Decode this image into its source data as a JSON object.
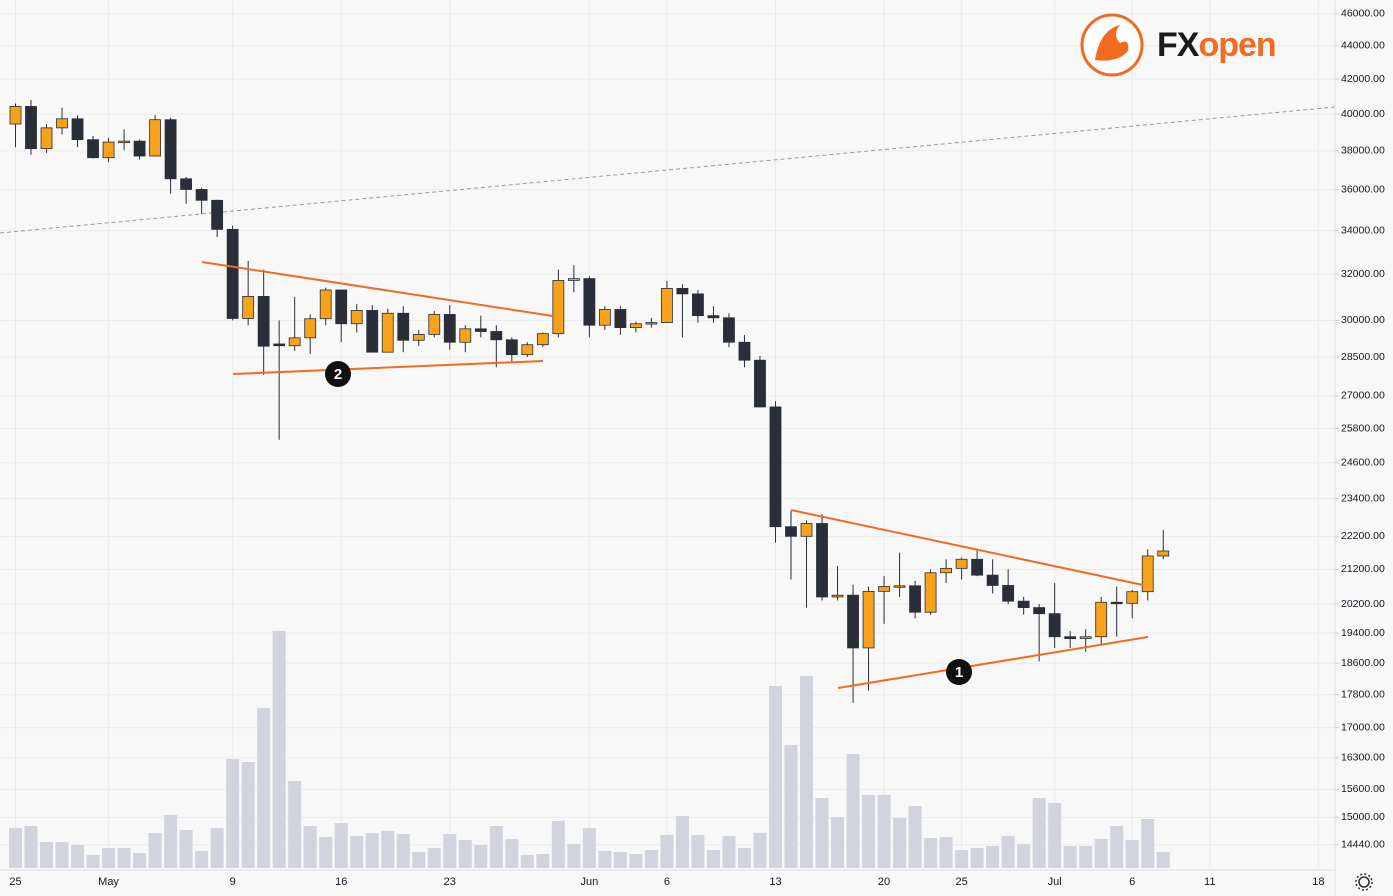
{
  "chart_data": {
    "type": "candlestick",
    "categories": [
      "25",
      null,
      null,
      null,
      null,
      null,
      "May",
      null,
      null,
      null,
      null,
      null,
      null,
      null,
      "9",
      null,
      null,
      null,
      null,
      null,
      null,
      "16",
      null,
      null,
      null,
      null,
      null,
      null,
      "23",
      null,
      null,
      null,
      null,
      null,
      null,
      null,
      null,
      "Jun",
      null,
      null,
      null,
      null,
      "6",
      null,
      null,
      null,
      null,
      null,
      null,
      "13",
      null,
      null,
      null,
      null,
      null,
      null,
      "20",
      null,
      null,
      null,
      null,
      "25",
      null,
      null,
      null,
      null,
      null,
      "Jul",
      null,
      null,
      null,
      null,
      "6",
      null,
      null,
      null,
      null,
      "11",
      null,
      null,
      null,
      null,
      null,
      null,
      "18"
    ],
    "open": [
      39450,
      40430,
      38120,
      39240,
      39740,
      38600,
      37640,
      38470,
      38520,
      37730,
      39690,
      36550,
      36010,
      35470,
      34060,
      30080,
      31020,
      29030,
      28960,
      29280,
      30070,
      31300,
      29860,
      30420,
      28700,
      30300,
      29180,
      29420,
      30250,
      29100,
      29650,
      29540,
      29200,
      28600,
      29000,
      29450,
      31720,
      31800,
      29800,
      30460,
      29700,
      29860,
      29910,
      31370,
      31130,
      30200,
      30110,
      29100,
      28380,
      26590,
      22500,
      22200,
      22600,
      20400,
      20450,
      19000,
      20560,
      20700,
      20720,
      19970,
      21100,
      21230,
      21500,
      21030,
      20730,
      20280,
      20100,
      19930,
      19300,
      19250,
      19300,
      20250,
      20220,
      20550,
      21600,
      null,
      null,
      null,
      null,
      null,
      null,
      null,
      null,
      null,
      null
    ],
    "high": [
      40600,
      40800,
      39450,
      40360,
      39930,
      38800,
      38700,
      39150,
      38600,
      39950,
      39800,
      36650,
      36100,
      35500,
      34240,
      32600,
      32200,
      30000,
      31000,
      30260,
      31400,
      31300,
      30700,
      30650,
      30500,
      30600,
      29600,
      30400,
      30650,
      29800,
      30200,
      29800,
      29300,
      29100,
      29500,
      32200,
      32400,
      31900,
      30600,
      30600,
      29950,
      30100,
      31700,
      31550,
      31300,
      30600,
      30300,
      29400,
      28550,
      26800,
      23000,
      22700,
      22900,
      21300,
      20750,
      20700,
      21000,
      21700,
      20860,
      21200,
      21500,
      21550,
      21800,
      21500,
      21200,
      20400,
      20200,
      20800,
      19450,
      19500,
      20400,
      20700,
      20600,
      21800,
      22400,
      null,
      null,
      null,
      null,
      null,
      null,
      null,
      null,
      null,
      null
    ],
    "low": [
      38200,
      37800,
      37900,
      38880,
      38200,
      37600,
      37400,
      38050,
      37550,
      37700,
      35800,
      35300,
      34800,
      33700,
      30000,
      29800,
      27800,
      25400,
      28750,
      28630,
      29800,
      29100,
      29500,
      28700,
      28700,
      28700,
      28950,
      29300,
      28800,
      28700,
      29300,
      28100,
      28300,
      28500,
      28900,
      29300,
      31200,
      29300,
      29600,
      29400,
      29500,
      29700,
      29900,
      29300,
      29900,
      29900,
      28900,
      28100,
      26600,
      22000,
      20900,
      20100,
      20300,
      20300,
      17600,
      17900,
      19650,
      20400,
      19800,
      19900,
      20800,
      20900,
      21000,
      20500,
      20200,
      19900,
      18650,
      19000,
      19000,
      18900,
      19100,
      19300,
      19800,
      20300,
      21500,
      null,
      null,
      null,
      null,
      null,
      null,
      null,
      null,
      null,
      null
    ],
    "close": [
      40430,
      38120,
      39240,
      39740,
      38600,
      37640,
      38470,
      38520,
      37730,
      39690,
      36550,
      36010,
      35470,
      34060,
      30080,
      31020,
      28940,
      28960,
      29280,
      30070,
      31300,
      29860,
      30420,
      28700,
      30300,
      29180,
      29420,
      30250,
      29100,
      29650,
      29540,
      29200,
      28600,
      29000,
      29450,
      31720,
      31800,
      29800,
      30460,
      29700,
      29860,
      29910,
      31370,
      31130,
      30200,
      30110,
      29100,
      28380,
      26590,
      22500,
      22200,
      22600,
      20400,
      20450,
      19000,
      20560,
      20700,
      20720,
      19970,
      21100,
      21230,
      21500,
      21030,
      20730,
      20280,
      20100,
      19930,
      19300,
      19250,
      19300,
      20250,
      20220,
      20550,
      21600,
      21750,
      null,
      null,
      null,
      null,
      null,
      null,
      null,
      null,
      null,
      null
    ],
    "up_color": "#f7a21b",
    "down_color": "#2a2e39",
    "volume": {
      "color": "#d1d4dc",
      "values": [
        40,
        42,
        26,
        26,
        23,
        13,
        20,
        20,
        15,
        35,
        53,
        38,
        17,
        40,
        109,
        106,
        160,
        237,
        87,
        42,
        31,
        45,
        32,
        35,
        37,
        34,
        16,
        20,
        34,
        28,
        23,
        42,
        29,
        13,
        14,
        47,
        24,
        40,
        17,
        16,
        14,
        18,
        33,
        52,
        33,
        18,
        32,
        20,
        35,
        182,
        123,
        192,
        70,
        51,
        114,
        73,
        73,
        50,
        62,
        30,
        31,
        18,
        20,
        22,
        32,
        24,
        70,
        65,
        22,
        22,
        29,
        42,
        28,
        49,
        16,
        null,
        null,
        null,
        null,
        null,
        null,
        null,
        null,
        null,
        null
      ]
    },
    "ylim": [
      13940,
      46900
    ],
    "log_scale": true,
    "grid": true,
    "yticks": [
      {
        "value": 46000,
        "label": "46000.00"
      },
      {
        "value": 44000,
        "label": "44000.00"
      },
      {
        "value": 42000,
        "label": "42000.00"
      },
      {
        "value": 40000,
        "label": "40000.00"
      },
      {
        "value": 38000,
        "label": "38000.00"
      },
      {
        "value": 36000,
        "label": "36000.00"
      },
      {
        "value": 34000,
        "label": "34000.00"
      },
      {
        "value": 32000,
        "label": "32000.00"
      },
      {
        "value": 30000,
        "label": "30000.00"
      },
      {
        "value": 28500,
        "label": "28500.00"
      },
      {
        "value": 27000,
        "label": "27000.00"
      },
      {
        "value": 25800,
        "label": "25800.00"
      },
      {
        "value": 24600,
        "label": "24600.00"
      },
      {
        "value": 23400,
        "label": "23400.00"
      },
      {
        "value": 22200,
        "label": "22200.00"
      },
      {
        "value": 21200,
        "label": "21200.00"
      },
      {
        "value": 20200,
        "label": "20200.00"
      },
      {
        "value": 19400,
        "label": "19400.00"
      },
      {
        "value": 18600,
        "label": "18600.00"
      },
      {
        "value": 17800,
        "label": "17800.00"
      },
      {
        "value": 17000,
        "label": "17000.00"
      },
      {
        "value": 16300,
        "label": "16300.00"
      },
      {
        "value": 15600,
        "label": "15600.00"
      },
      {
        "value": 15000,
        "label": "15000.00"
      },
      {
        "value": 14440,
        "label": "14440.00"
      }
    ],
    "annotations": [
      "1",
      "2"
    ],
    "logo": {
      "prefix": "FX",
      "suffix": "open"
    }
  }
}
